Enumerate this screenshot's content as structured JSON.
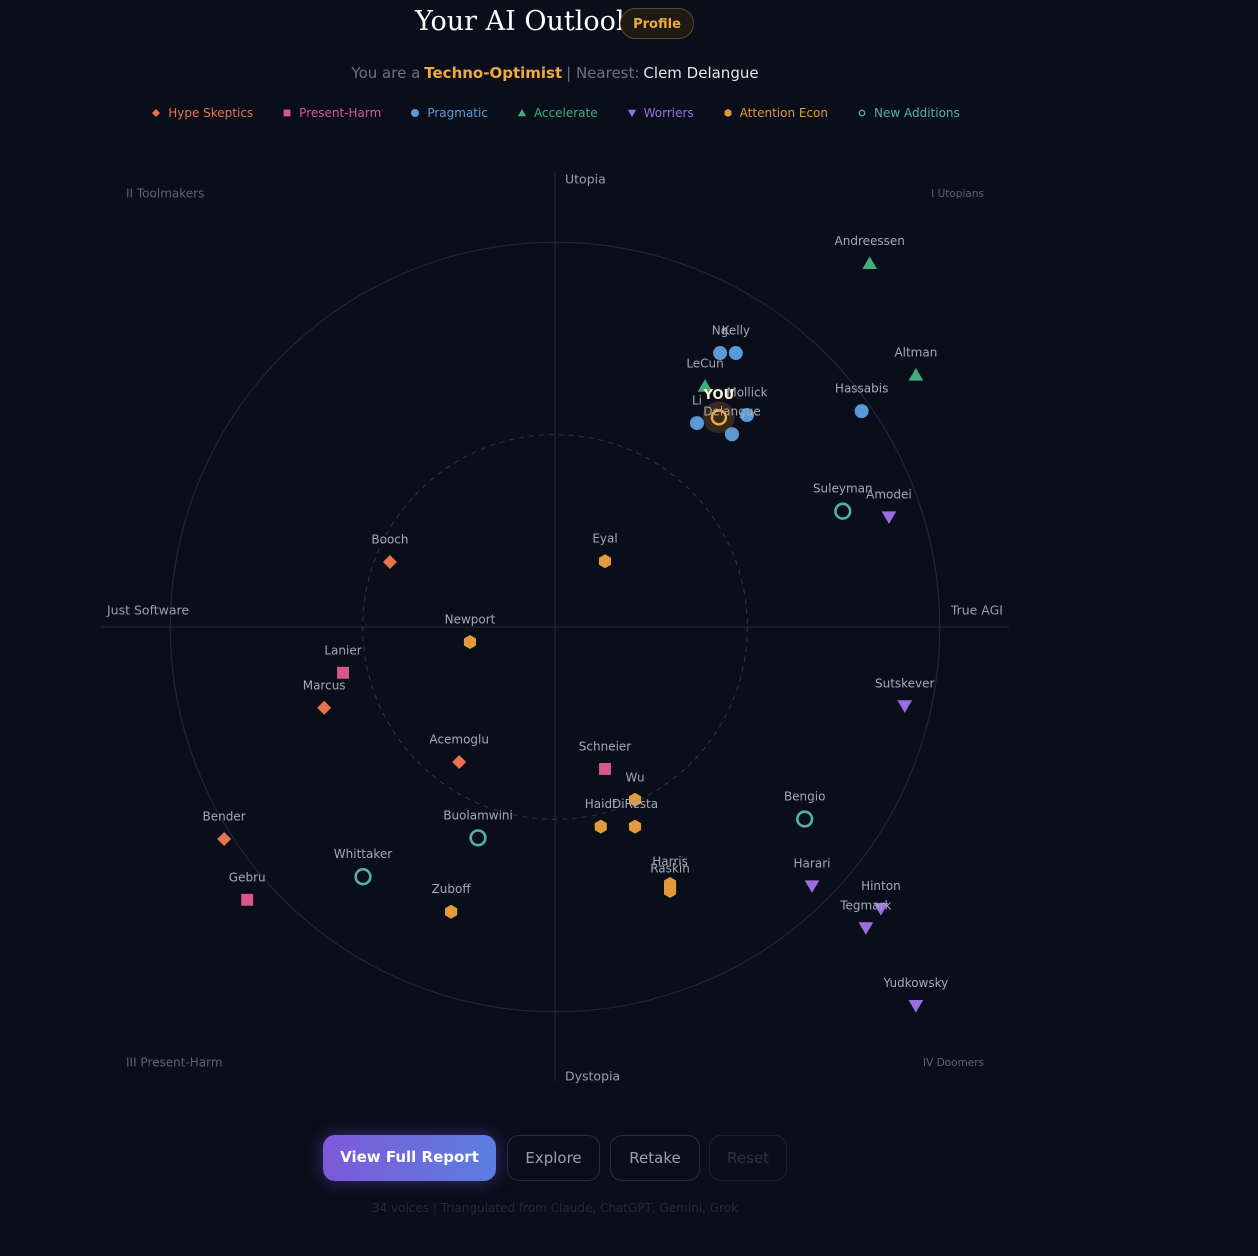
{
  "header": {
    "title": "Your AI Outlook",
    "badge": "Profile",
    "subtitle": {
      "prefix": "You are a",
      "archetype": "Techno-Optimist",
      "nearest_label": "| Nearest:",
      "nearest": "Clem Delangue"
    }
  },
  "chart_data": {
    "type": "scatter",
    "xlim": [
      -1.18,
      1.18
    ],
    "ylim": [
      -1.18,
      1.18
    ],
    "axis_labels": {
      "top": "Utopia",
      "bottom": "Dystopia",
      "left": "Just Software",
      "right": "True AGI"
    },
    "quadrants": {
      "top_left": "II Toolmakers",
      "top_right": "I Utopians",
      "bottom_left": "III Present-Harm",
      "bottom_right": "IV Doomers"
    },
    "you": {
      "label": "YOU",
      "x": 0.426,
      "y": 0.545,
      "color": "#f2a93b"
    },
    "series": [
      {
        "name": "Hype Skeptics",
        "color": "#e8744a",
        "marker": "diamond",
        "labels": [
          "Booch",
          "Marcus",
          "Acemoglu",
          "Bender"
        ],
        "x": [
          -0.429,
          -0.6,
          -0.249,
          -0.86
        ],
        "values": [
          0.169,
          -0.21,
          -0.351,
          -0.551
        ]
      },
      {
        "name": "Present-Harm",
        "color": "#d9578a",
        "marker": "square",
        "labels": [
          "Lanier",
          "Schneier",
          "Gebru"
        ],
        "x": [
          -0.551,
          0.13,
          -0.8
        ],
        "values": [
          -0.119,
          -0.369,
          -0.709
        ]
      },
      {
        "name": "Pragmatic",
        "color": "#5b9bd5",
        "marker": "circle",
        "labels": [
          "Ng",
          "Kelly",
          "Li",
          "Mollick",
          "Delangue",
          "Hassabis"
        ],
        "x": [
          0.429,
          0.47,
          0.369,
          0.499,
          0.46,
          0.797
        ],
        "values": [
          0.712,
          0.712,
          0.53,
          0.551,
          0.501,
          0.561
        ]
      },
      {
        "name": "Accelerate",
        "color": "#3fae7a",
        "marker": "triangle-up",
        "labels": [
          "Andreessen",
          "Altman",
          "LeCun"
        ],
        "x": [
          0.818,
          0.938,
          0.39
        ],
        "values": [
          0.945,
          0.655,
          0.626
        ]
      },
      {
        "name": "Worriers",
        "color": "#9b6fe0",
        "marker": "triangle-down",
        "labels": [
          "Amodei",
          "Sutskever",
          "Harari",
          "Hinton",
          "Tegmark",
          "Yudkowsky"
        ],
        "x": [
          0.868,
          0.909,
          0.668,
          0.847,
          0.808,
          0.938
        ],
        "values": [
          0.286,
          -0.205,
          -0.673,
          -0.732,
          -0.782,
          -0.984
        ]
      },
      {
        "name": "Attention Econ",
        "color": "#e39a3a",
        "marker": "hexagon",
        "labels": [
          "Eyal",
          "Newport",
          "Wu",
          "Haidt",
          "DiResta",
          "Harris",
          "Raskin",
          "Zuboff"
        ],
        "x": [
          0.13,
          -0.221,
          0.208,
          0.119,
          0.208,
          0.299,
          0.299,
          -0.27
        ],
        "values": [
          0.171,
          -0.039,
          -0.449,
          -0.519,
          -0.519,
          -0.668,
          -0.686,
          -0.74
        ]
      },
      {
        "name": "New Additions",
        "color": "#4fb3a0",
        "marker": "ring",
        "labels": [
          "Suleyman",
          "Bengio",
          "Buolamwini",
          "Whittaker"
        ],
        "x": [
          0.748,
          0.649,
          -0.2,
          -0.499
        ],
        "values": [
          0.301,
          -0.499,
          -0.548,
          -0.649
        ]
      }
    ]
  },
  "buttons": [
    "View Full Report",
    "Explore",
    "Retake",
    "Reset"
  ],
  "footer": "34 voices | Triangulated from Claude, ChatGPT, Gemini, Grok"
}
